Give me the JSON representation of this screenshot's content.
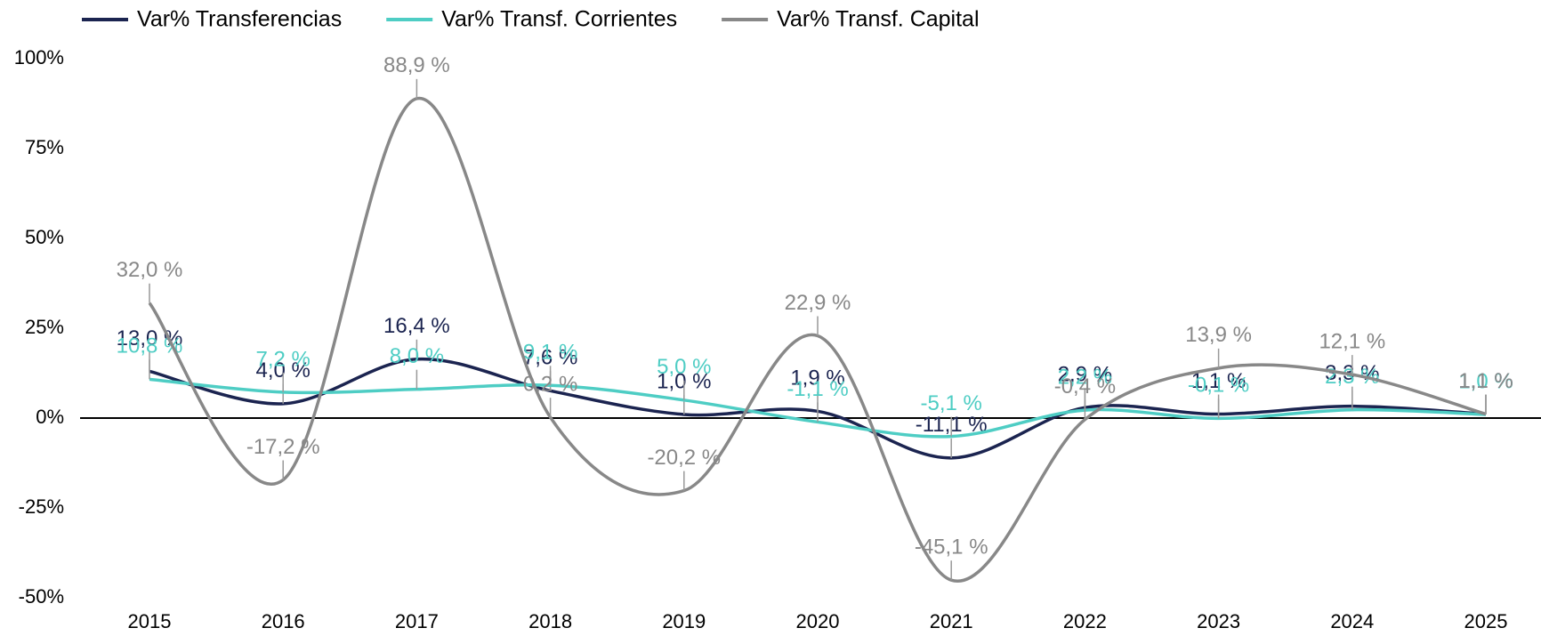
{
  "chart_data": {
    "type": "line",
    "categories": [
      "2015",
      "2016",
      "2017",
      "2018",
      "2019",
      "2020",
      "2021",
      "2022",
      "2023",
      "2024",
      "2025"
    ],
    "series": [
      {
        "name": "Var% Transferencias",
        "color": "#1b2450",
        "values": [
          13.0,
          4.0,
          16.4,
          7.6,
          1.0,
          1.9,
          -11.1,
          2.9,
          1.1,
          3.3,
          1.1
        ],
        "value_labels": [
          "13,0 %",
          "4,0 %",
          "16,4 %",
          "7,6 %",
          "1,0 %",
          "1,9 %",
          "-11,1 %",
          "2,9 %",
          "1,1 %",
          "3,3 %",
          "1,1 %"
        ]
      },
      {
        "name": "Var% Transf. Corrientes",
        "color": "#4ecdc4",
        "values": [
          10.8,
          7.2,
          8.0,
          9.1,
          5.0,
          -1.1,
          -5.1,
          2.2,
          -0.1,
          2.3,
          1.0
        ],
        "value_labels": [
          "10,8 %",
          "7,2 %",
          "8,0 %",
          "9,1 %",
          "5,0 %",
          "-1,1 %",
          "-5,1 %",
          "2,2 %",
          "-0,1 %",
          "2,3 %",
          "1,0 %"
        ]
      },
      {
        "name": "Var% Transf. Capital",
        "color": "#888888",
        "values": [
          32.0,
          -17.2,
          88.9,
          0.2,
          -20.2,
          22.9,
          -45.1,
          -0.4,
          13.9,
          12.1,
          1.1
        ],
        "value_labels": [
          "32,0 %",
          "-17,2 %",
          "88,9 %",
          "0,2 %",
          "-20,2 %",
          "22,9 %",
          "-45,1 %",
          "-0,4 %",
          "13,9 %",
          "12,1 %",
          "1,1 %"
        ]
      }
    ],
    "ylim": [
      -50,
      100
    ],
    "yticks": [
      {
        "value": -50,
        "label": "-50%"
      },
      {
        "value": -25,
        "label": "-25%"
      },
      {
        "value": 0,
        "label": "0%"
      },
      {
        "value": 25,
        "label": "25%"
      },
      {
        "value": 50,
        "label": "50%"
      },
      {
        "value": 75,
        "label": "75%"
      },
      {
        "value": 100,
        "label": "100%"
      }
    ],
    "legend": "top-left"
  }
}
